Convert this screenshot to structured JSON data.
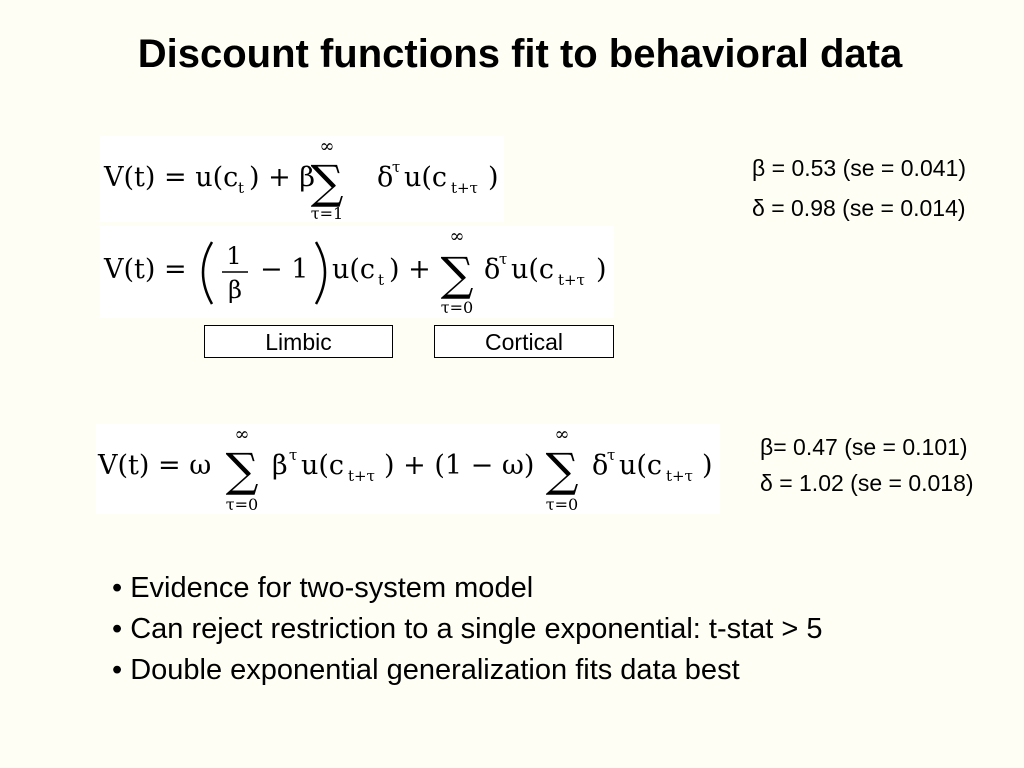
{
  "slide": {
    "title": "Discount functions fit to behavioral data"
  },
  "equations": {
    "eq1": {
      "lhs": "V(t) = u(c",
      "sub_t": "t",
      "plus_beta": ") + β",
      "sum_top": "∞",
      "sum_bottom": "τ=1",
      "summand": "δ",
      "sup_tau": "τ",
      "u_open": "u(c",
      "sub_t_tau": "t+τ",
      "close": ")"
    },
    "eq2": {
      "lhs": "V(t) =",
      "frac_num": "1",
      "frac_den": "β",
      "minus_one": "− 1",
      "u_ct": "u(c",
      "sub_t": "t",
      "plus": ") +",
      "sum_top": "∞",
      "sum_bottom": "τ=0",
      "summand": "δ",
      "sup_tau": "τ",
      "u_open": "u(c",
      "sub_t_tau": "t+τ",
      "close": ")"
    },
    "eq3": {
      "lhs": "V(t) = ω",
      "sum1_top": "∞",
      "sum1_bottom": "τ=0",
      "summand1": "β",
      "sup1": "τ",
      "u1": "u(c",
      "sub1": "t+τ",
      "mid": ") + (1 − ω)",
      "sum2_top": "∞",
      "sum2_bottom": "τ=0",
      "summand2": "δ",
      "sup2": "τ",
      "u2": "u(c",
      "sub2": "t+τ",
      "close": ")"
    }
  },
  "labels": {
    "limbic": "Limbic",
    "cortical": "Cortical"
  },
  "params_top": {
    "beta": "β = 0.53 (se = 0.041)",
    "delta": "δ = 0.98 (se = 0.014)"
  },
  "params_bottom": {
    "beta": "β= 0.47 (se = 0.101)",
    "delta": "δ = 1.02 (se = 0.018)"
  },
  "bullets": [
    "• Evidence for two-system model",
    "• Can reject restriction to a single exponential: t-stat > 5",
    "• Double exponential generalization fits data best"
  ]
}
